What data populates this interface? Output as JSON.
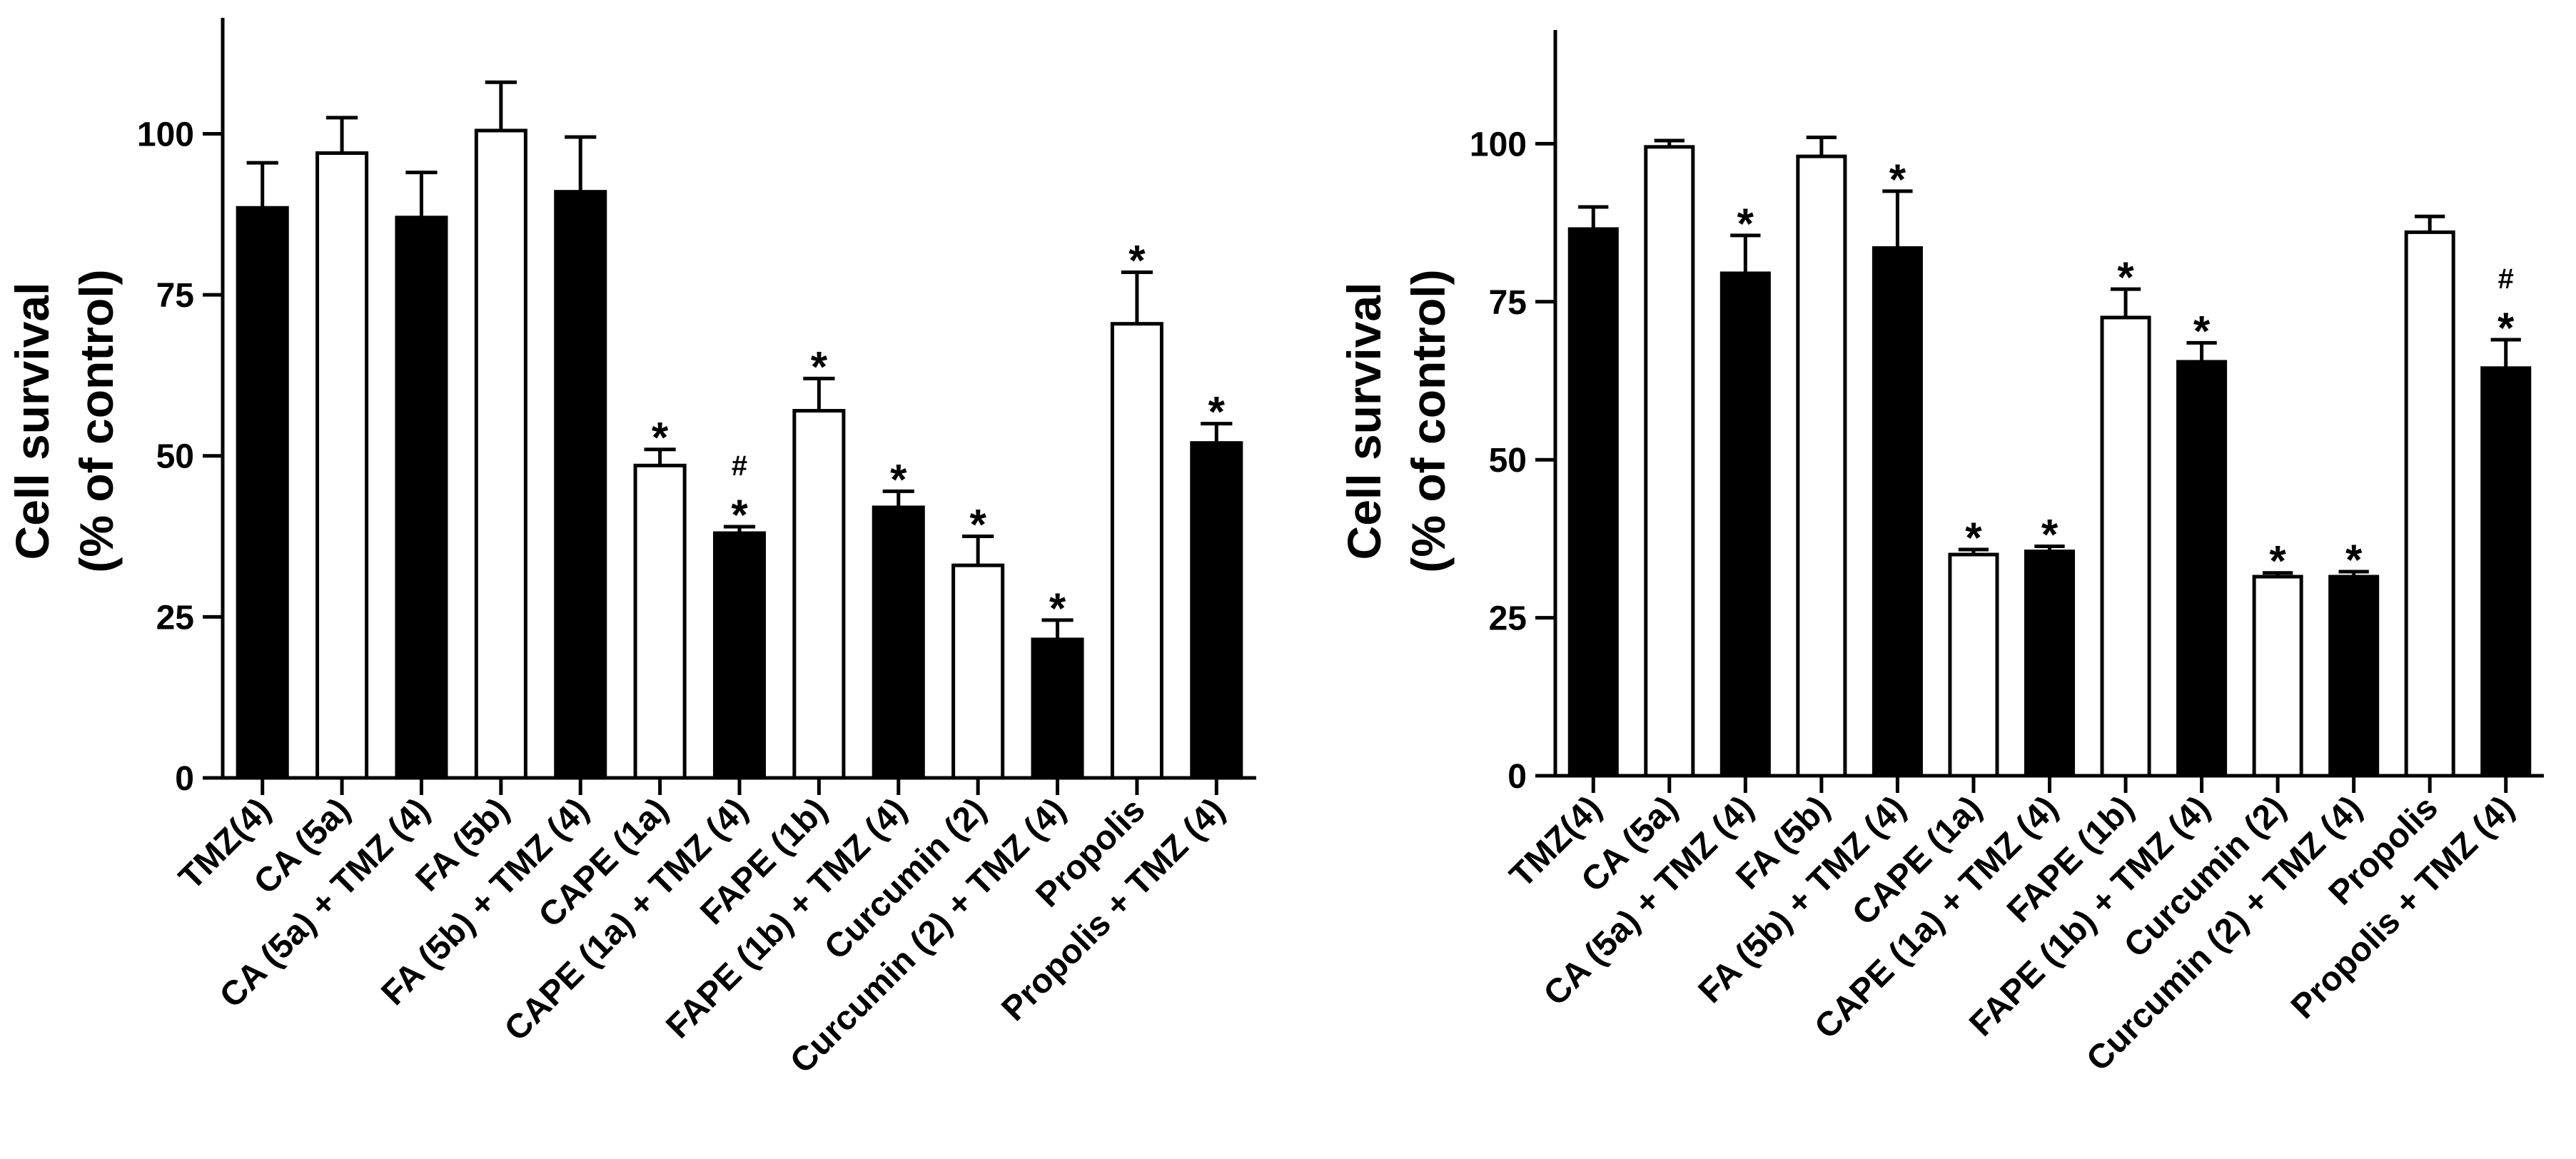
{
  "colors": {
    "filled_bar": "#000000",
    "open_bar": "#ffffff",
    "axis": "#000000"
  },
  "chart_data": [
    {
      "type": "bar",
      "panel": "left",
      "title": "",
      "xlabel": "",
      "ylabel_line1": "Cell survival",
      "ylabel_line2": "(% of control)",
      "ylim": [
        0,
        118
      ],
      "yticks": [
        0,
        25,
        50,
        75,
        100
      ],
      "categories": [
        "TMZ(4)",
        "CA (5a)",
        "CA (5a) + TMZ (4)",
        "FA (5b)",
        "FA (5b) + TMZ (4)",
        "CAPE (1a)",
        "CAPE (1a) + TMZ (4)",
        "FAPE (1b)",
        "FAPE (1b) + TMZ (4)",
        "Curcumin (2)",
        "Curcumin (2) + TMZ (4)",
        "Propolis",
        "Propolis + TMZ (4)"
      ],
      "values": [
        88.5,
        97,
        87,
        100.5,
        91,
        48.5,
        38,
        57,
        42,
        33,
        21.5,
        70.5,
        52
      ],
      "errors": [
        7,
        5.5,
        7,
        7.5,
        8.5,
        2.5,
        1,
        5,
        2.5,
        4.5,
        3,
        8,
        3
      ],
      "fill": [
        "filled",
        "open",
        "filled",
        "open",
        "filled",
        "open",
        "filled",
        "open",
        "filled",
        "open",
        "filled",
        "open",
        "filled"
      ],
      "annotations": [
        "",
        "",
        "",
        "",
        "",
        "*",
        "#\n*",
        "*",
        "*",
        "*",
        "*",
        "*",
        "*"
      ]
    },
    {
      "type": "bar",
      "panel": "right",
      "title": "",
      "xlabel": "",
      "ylabel_line1": "Cell survival",
      "ylabel_line2": "(% of control)",
      "ylim": [
        0,
        118
      ],
      "yticks": [
        0,
        25,
        50,
        75,
        100
      ],
      "categories": [
        "TMZ(4)",
        "CA (5a)",
        "CA (5a) + TMZ (4)",
        "FA (5b)",
        "FA (5b) + TMZ (4)",
        "CAPE (1a)",
        "CAPE (1a) + TMZ (4)",
        "FAPE (1b)",
        "FAPE (1b) + TMZ (4)",
        "Curcumin (2)",
        "Curcumin (2) + TMZ (4)",
        "Propolis",
        "Propolis + TMZ (4)"
      ],
      "values": [
        86.5,
        99.5,
        79.5,
        98,
        83.5,
        35,
        35.5,
        72.5,
        65.5,
        31.5,
        31.5,
        86,
        64.5
      ],
      "errors": [
        3.5,
        1,
        6,
        3,
        9,
        0.8,
        0.8,
        4.5,
        3,
        0.6,
        0.8,
        2.5,
        4.5
      ],
      "fill": [
        "filled",
        "open",
        "filled",
        "open",
        "filled",
        "open",
        "filled",
        "open",
        "filled",
        "open",
        "filled",
        "open",
        "filled"
      ],
      "annotations": [
        "",
        "",
        "*",
        "",
        "*",
        "*",
        "*",
        "*",
        "*",
        "*",
        "*",
        "",
        "#\n*"
      ]
    }
  ]
}
